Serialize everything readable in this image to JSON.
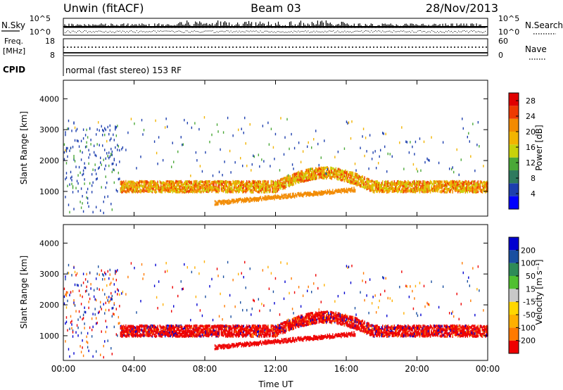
{
  "header": {
    "station": "Unwin (fitACF)",
    "beam": "Beam 03",
    "date": "28/Nov/2013"
  },
  "noise_panel": {
    "left_label": "N.Sky",
    "left_ticks": [
      "10^5",
      "10^0"
    ],
    "right_ticks": [
      "10^5",
      "10^0"
    ],
    "right_label": "N.Search"
  },
  "freq_panel": {
    "left_label_line1": "Freq.",
    "left_label_line2": "[MHz]",
    "left_ticks": [
      "18",
      "8"
    ],
    "right_ticks": [
      "60",
      "0"
    ],
    "right_label": "Nave"
  },
  "cpid_panel": {
    "label": "CPID",
    "text": "normal (fast stereo) 153 RF"
  },
  "colors": {
    "power_scale": [
      "#0000ff",
      "#1d3fae",
      "#2f7a5e",
      "#4aa838",
      "#c8d20a",
      "#f2b400",
      "#f28a00",
      "#ee3a00",
      "#e00000"
    ],
    "velocity_scale": [
      "#ee0000",
      "#ff7a00",
      "#ffb000",
      "#ffd700",
      "#c8c8c8",
      "#50c030",
      "#2e8b57",
      "#1a4fa0",
      "#0000d0"
    ]
  },
  "chart_data": [
    {
      "type": "heatmap",
      "title": "",
      "ylabel": "Slant Range [km]",
      "xlabel": "",
      "y_ticks": [
        "1000",
        "2000",
        "3000",
        "4000"
      ],
      "ylim": [
        200,
        4600
      ],
      "xlim_hours": [
        0,
        24
      ],
      "colorbar": {
        "label": "Power [dB]",
        "ticks": [
          "4",
          "8",
          "12",
          "16",
          "20",
          "24",
          "28"
        ],
        "range": [
          0,
          30
        ]
      },
      "features": [
        {
          "name": "main band",
          "start_hour": 3.2,
          "end_hour": 24,
          "center_km": 1150,
          "half_width_km": 180
        },
        {
          "name": "lower arc",
          "start_hour": 8.5,
          "end_hour": 16.5,
          "center_km": 620,
          "half_width_km": 60
        }
      ]
    },
    {
      "type": "heatmap",
      "title": "",
      "ylabel": "Slant Range [km]",
      "xlabel": "Time UT",
      "x_ticks": [
        "00:00",
        "04:00",
        "08:00",
        "12:00",
        "16:00",
        "20:00",
        "00:00"
      ],
      "y_ticks": [
        "1000",
        "2000",
        "3000",
        "4000"
      ],
      "ylim": [
        200,
        4600
      ],
      "xlim_hours": [
        0,
        24
      ],
      "colorbar": {
        "label": "Velocity [m s⁻¹]",
        "ticks": [
          "200",
          "100",
          "50",
          "15",
          "-15",
          "-50",
          "-100",
          "-200"
        ]
      },
      "features": [
        {
          "name": "main band",
          "start_hour": 3.2,
          "end_hour": 24,
          "center_km": 1150,
          "half_width_km": 180
        },
        {
          "name": "lower arc",
          "start_hour": 8.5,
          "end_hour": 16.5,
          "center_km": 620,
          "half_width_km": 60
        }
      ]
    }
  ]
}
